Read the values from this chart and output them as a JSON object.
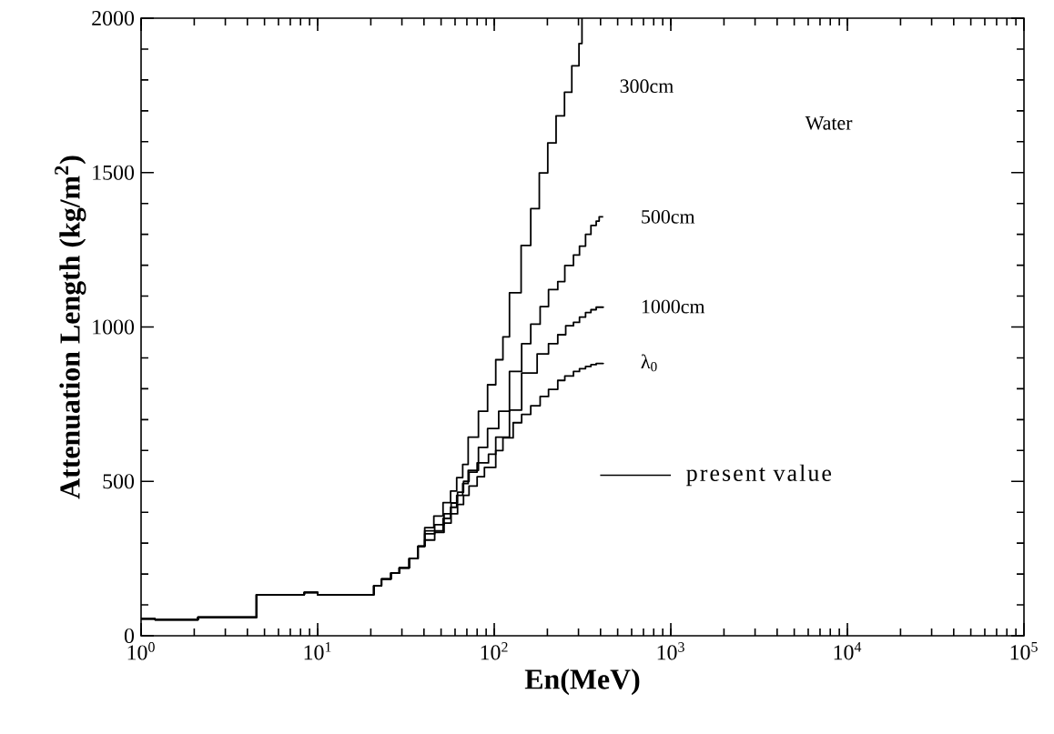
{
  "chart_data": {
    "type": "step",
    "xlabel": "En(MeV)",
    "ylabel": "Attenuation Length (kg/m$^{2}$)",
    "log": "x",
    "xlim": [
      1,
      100000
    ],
    "ylim": [
      0,
      2000
    ],
    "xticks": [
      {
        "value": 1,
        "label": "10$^{0}$"
      },
      {
        "value": 10,
        "label": "10$^{1}$"
      },
      {
        "value": 100,
        "label": "10$^{2}$"
      },
      {
        "value": 1000,
        "label": "10$^{3}$"
      },
      {
        "value": 10000,
        "label": "10$^{4}$"
      },
      {
        "value": 100000,
        "label": "10$^{5}$"
      }
    ],
    "yticks": [
      0,
      {
        "value": 100,
        "label": null
      },
      {
        "value": 200,
        "label": null
      },
      {
        "value": 300,
        "label": null
      },
      {
        "value": 400,
        "label": null
      },
      500,
      {
        "value": 600,
        "label": null
      },
      {
        "value": 700,
        "label": null
      },
      {
        "value": 800,
        "label": null
      },
      {
        "value": 900,
        "label": null
      },
      1000,
      {
        "value": 1100,
        "label": null
      },
      {
        "value": 1200,
        "label": null
      },
      {
        "value": 1300,
        "label": null
      },
      {
        "value": 1400,
        "label": null
      },
      1500,
      {
        "value": 1600,
        "label": null
      },
      {
        "value": 1700,
        "label": null
      },
      {
        "value": 1800,
        "label": null
      },
      {
        "value": 1900,
        "label": null
      },
      2000
    ],
    "grid": false,
    "line_style": "solid",
    "annotations": [
      "Water",
      "present value"
    ],
    "series": [
      {
        "name": "300cm",
        "color": "#000000",
        "x": [
          1,
          1.2,
          2.1,
          4.5,
          8.4,
          10,
          20.8,
          23,
          26,
          29,
          33,
          37,
          40.4,
          45.5,
          51.3,
          56.6,
          61.3,
          66.3,
          71.2,
          81.4,
          91.7,
          102,
          112,
          122,
          142,
          161,
          180,
          201,
          224,
          250,
          275,
          302,
          314
        ],
        "values": [
          55,
          52,
          60,
          133,
          140,
          133,
          162,
          184,
          203,
          220,
          250,
          290,
          350,
          388,
          431,
          469,
          512,
          555,
          643,
          727,
          813,
          894,
          968,
          1111,
          1264,
          1383,
          1499,
          1596,
          1684,
          1760,
          1846,
          1918,
          2000
        ]
      },
      {
        "name": "500cm",
        "color": "#000000",
        "x": [
          1,
          1.2,
          2.1,
          4.5,
          8.4,
          10,
          20.8,
          23,
          26,
          29,
          33,
          37,
          40.4,
          51.3,
          56.6,
          61.3,
          66.3,
          71.2,
          81.4,
          91.7,
          106,
          122,
          143,
          161,
          182,
          203,
          229,
          251,
          281,
          304,
          329,
          353,
          378,
          393,
          414
        ],
        "values": [
          55,
          52,
          60,
          133,
          140,
          133,
          162,
          184,
          203,
          220,
          250,
          290,
          340,
          380,
          416,
          455,
          493,
          536,
          610,
          671,
          727,
          856,
          946,
          1009,
          1066,
          1121,
          1147,
          1199,
          1233,
          1262,
          1300,
          1329,
          1343,
          1357,
          1357
        ]
      },
      {
        "name": "1000cm",
        "color": "#000000",
        "x": [
          1,
          1.2,
          2.1,
          4.5,
          8.4,
          10,
          20.8,
          23,
          26,
          29,
          33,
          37,
          40.4,
          46,
          52,
          57,
          62,
          67,
          72,
          80,
          92.8,
          102,
          122,
          143,
          175,
          203,
          229,
          254,
          281,
          304,
          329,
          353,
          378,
          414
        ],
        "values": [
          55,
          52,
          60,
          133,
          140,
          133,
          162,
          184,
          203,
          220,
          250,
          290,
          330,
          360,
          395,
          430,
          465,
          500,
          530,
          560,
          588,
          643,
          731,
          851,
          913,
          946,
          975,
          1004,
          1015,
          1032,
          1047,
          1056,
          1064,
          1066
        ]
      },
      {
        "name": "λ$_{0}$",
        "color": "#000000",
        "x": [
          1,
          1.2,
          2.1,
          4.5,
          8.4,
          10,
          20.8,
          23,
          26,
          29,
          33,
          37,
          40.4,
          46,
          52,
          57,
          62,
          67,
          72,
          80,
          88,
          102,
          112,
          128,
          143,
          161,
          182,
          203,
          229,
          251,
          281,
          304,
          329,
          353,
          378,
          414
        ],
        "values": [
          55,
          52,
          60,
          133,
          140,
          133,
          162,
          184,
          203,
          220,
          250,
          290,
          310,
          335,
          365,
          395,
          425,
          455,
          485,
          515,
          545,
          600,
          641,
          690,
          717,
          745,
          775,
          798,
          827,
          841,
          856,
          865,
          872,
          878,
          882,
          884
        ]
      }
    ]
  }
}
